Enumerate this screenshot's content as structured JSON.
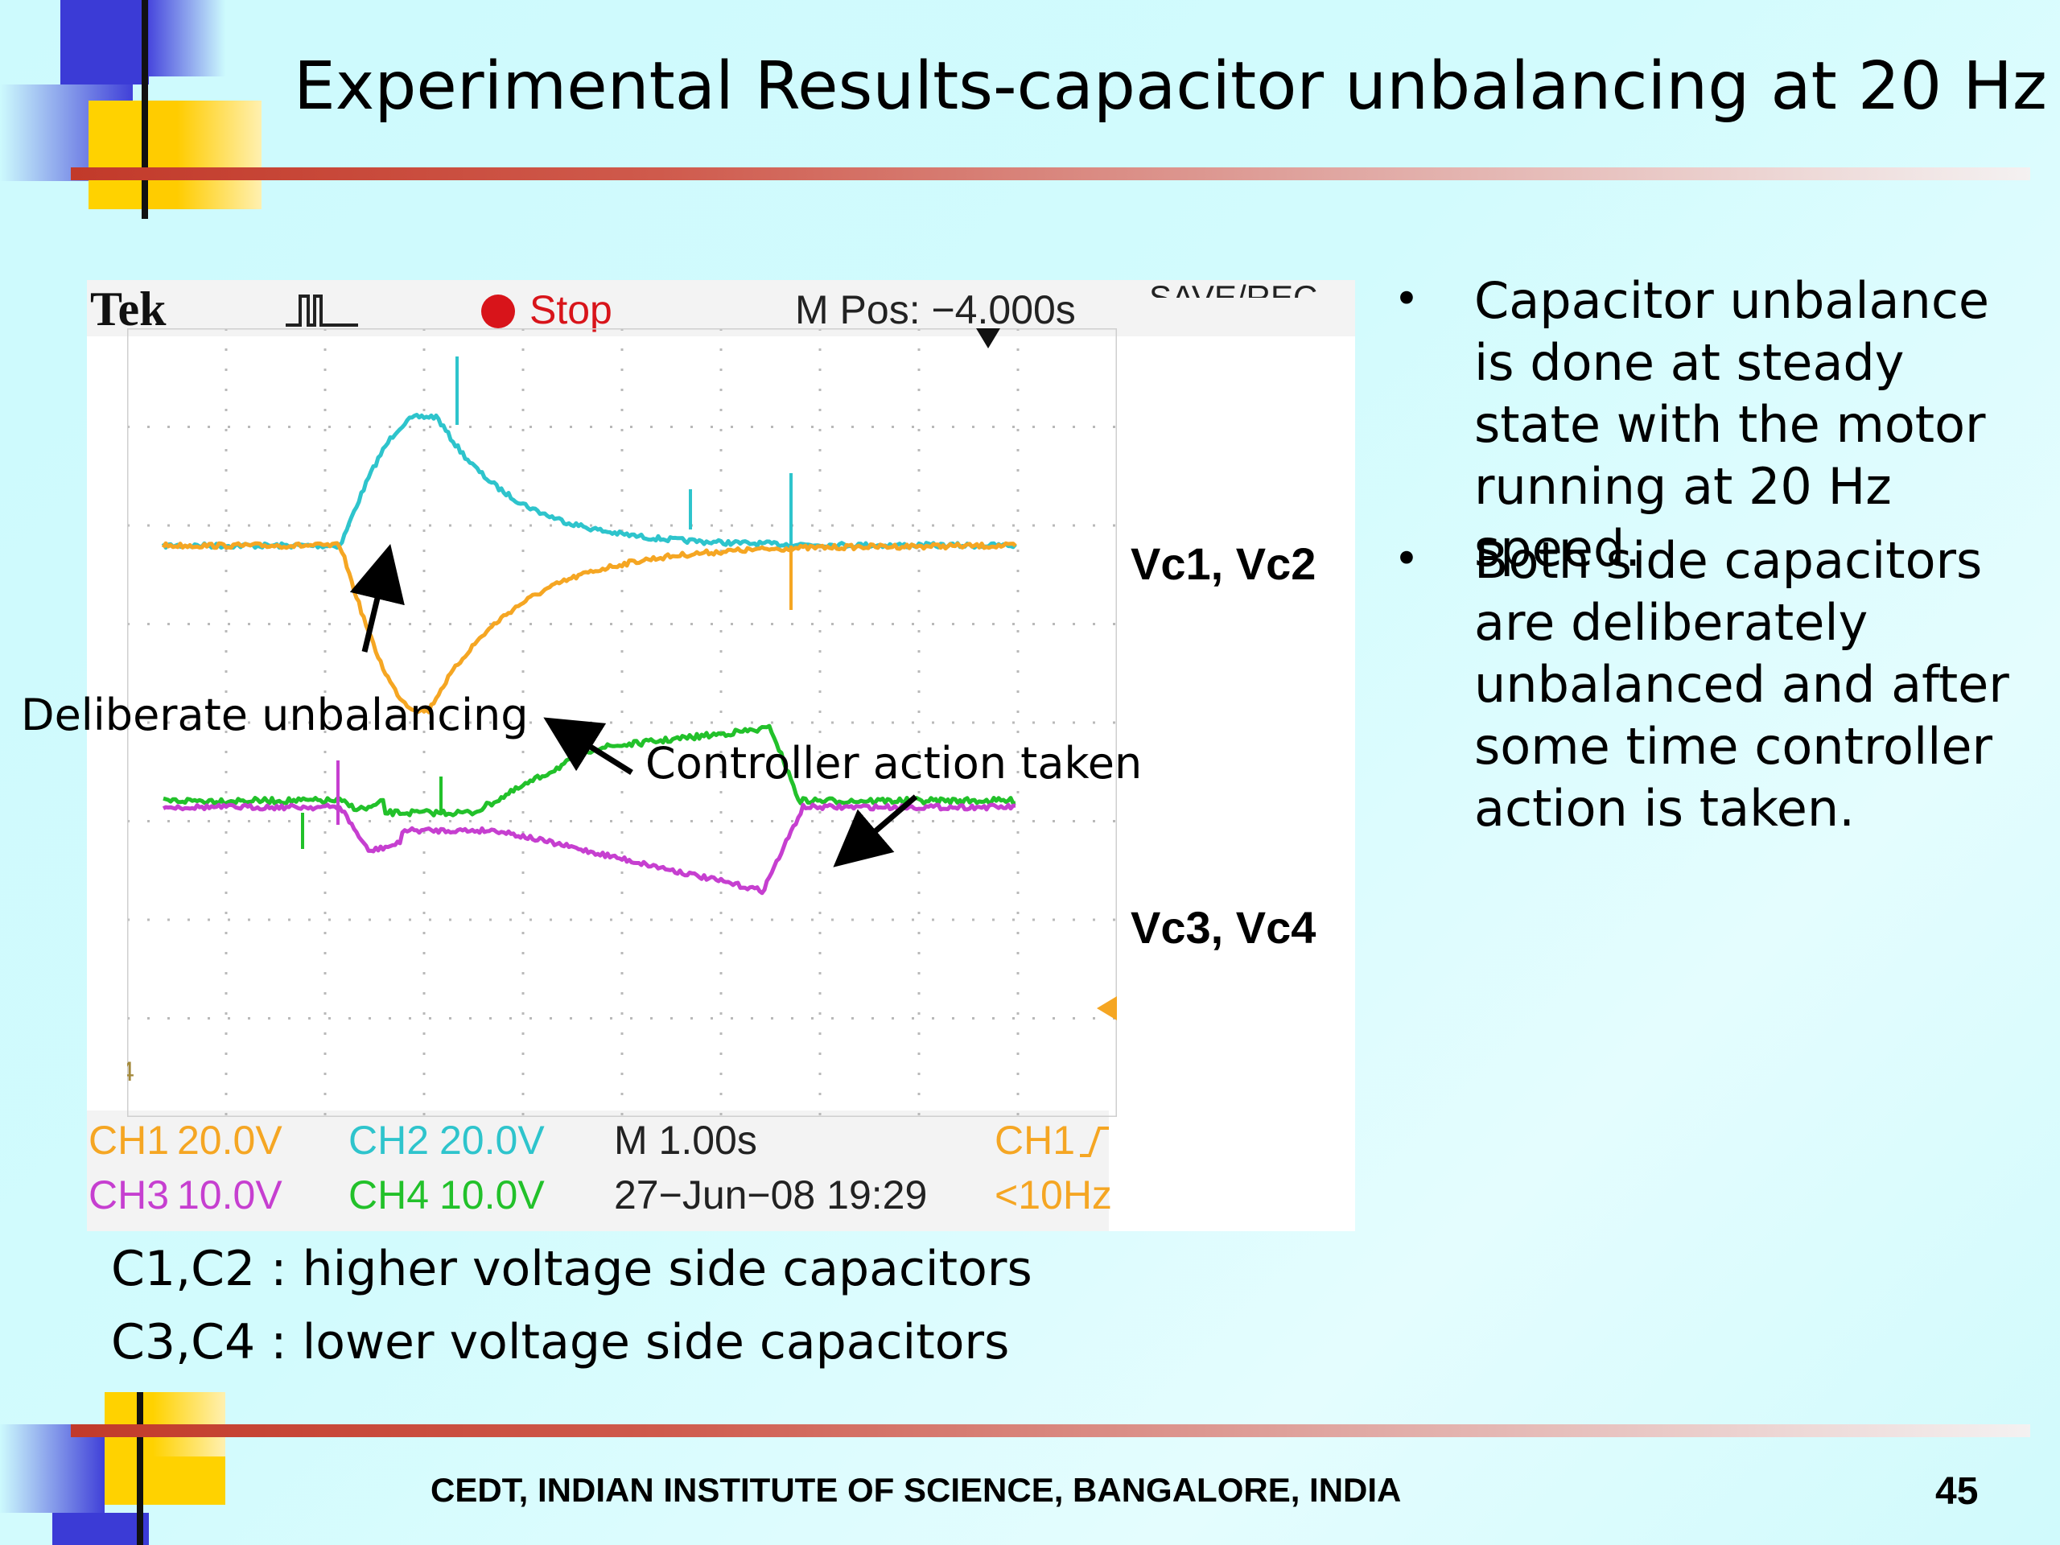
{
  "slide": {
    "title": "Experimental Results-capacitor unbalancing at 20 Hz",
    "footer": "CEDT, INDIAN INSTITUTE OF SCIENCE, BANGALORE, INDIA",
    "page_number": "45"
  },
  "scope": {
    "brand": "Tek",
    "status": "Stop",
    "m_pos": "M Pos: −4.000s",
    "menu_label": "SAVE/REC",
    "ch1": "CH1",
    "ch1_scale": "20.0V",
    "ch2": "CH2",
    "ch2_scale": "20.0V",
    "ch3": "CH3",
    "ch3_scale": "10.0V",
    "ch4": "CH4",
    "ch4_scale": "10.0V",
    "timebase": "M 1.00s",
    "date": "27−Jun−08 19:29",
    "trigger_ch": "CH1",
    "trigger_freq": "<10Hz",
    "colors": {
      "ch1": "#f5a623",
      "ch2": "#2ec4cc",
      "ch3": "#c63fd0",
      "ch4": "#22c12a"
    }
  },
  "annotations": {
    "deliberate": "Deliberate unbalancing",
    "controller": "Controller action taken",
    "vc12": "Vc1, Vc2",
    "vc34": "Vc3, Vc4"
  },
  "captions": {
    "line1": "C1,C2 : higher voltage side capacitors",
    "line2": "C3,C4 : lower voltage side capacitors"
  },
  "bullets": [
    "Capacitor unbalance is done at steady state with the motor running at 20 Hz speed.",
    "Both side capacitors are deliberately unbalanced and after some time controller action is taken."
  ]
}
